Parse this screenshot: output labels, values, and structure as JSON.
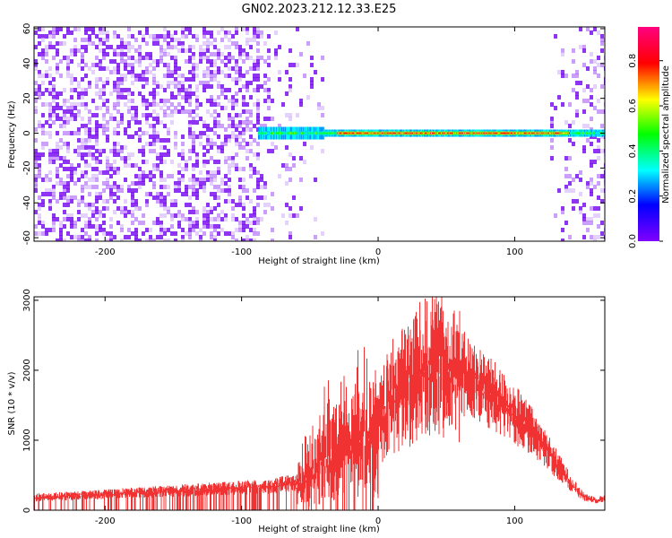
{
  "title": "GN02.2023.212.12.33.E25",
  "chart_data": [
    {
      "type": "heatmap",
      "xlabel": "Height of straight line (km)",
      "ylabel": "Frequency (Hz)",
      "xlim": [
        -252,
        166
      ],
      "ylim": [
        -62,
        61
      ],
      "x_ticks": [
        -200,
        -100,
        0,
        100
      ],
      "y_ticks": [
        -60,
        -40,
        -20,
        0,
        20,
        40,
        60
      ],
      "signal_band": {
        "frequency_hz": 0,
        "x_start": -88,
        "x_end": 166,
        "peak_amplitude": 0.9,
        "peak_region": [
          -30,
          140
        ]
      },
      "noise": {
        "dense_region": [
          -252,
          -88
        ],
        "gap_region": [
          -40,
          125
        ],
        "sparse_region": [
          125,
          166
        ]
      },
      "colorbar": {
        "label": "Normalized spectral amplitude",
        "range": [
          0,
          0.95
        ],
        "ticks": [
          0.0,
          0.2,
          0.4,
          0.6,
          0.8
        ],
        "tick_labels": [
          "0.0",
          "0.2",
          "0.4",
          "0.6",
          "0.8"
        ]
      }
    },
    {
      "type": "area",
      "xlabel": "Height of straight line (km)",
      "ylabel": "SNR (10 * v/v)",
      "xlim": [
        -252,
        166
      ],
      "ylim": [
        0,
        3050
      ],
      "x_ticks": [
        -200,
        -100,
        0,
        100
      ],
      "y_ticks": [
        0,
        1000,
        2000,
        3000
      ],
      "color": "#f03232",
      "envelope": {
        "x": [
          -252,
          -230,
          -200,
          -150,
          -120,
          -100,
          -80,
          -60,
          -50,
          -40,
          -30,
          -20,
          -10,
          -5,
          0,
          5,
          10,
          20,
          30,
          40,
          50,
          60,
          70,
          80,
          90,
          100,
          110,
          120,
          130,
          140,
          150,
          160,
          166
        ],
        "y": [
          190,
          210,
          240,
          290,
          320,
          340,
          360,
          420,
          560,
          800,
          950,
          1100,
          1180,
          1130,
          1300,
          1550,
          1750,
          1950,
          2150,
          2250,
          2200,
          2100,
          1950,
          1800,
          1620,
          1450,
          1250,
          1000,
          720,
          440,
          210,
          150,
          180
        ]
      }
    }
  ]
}
